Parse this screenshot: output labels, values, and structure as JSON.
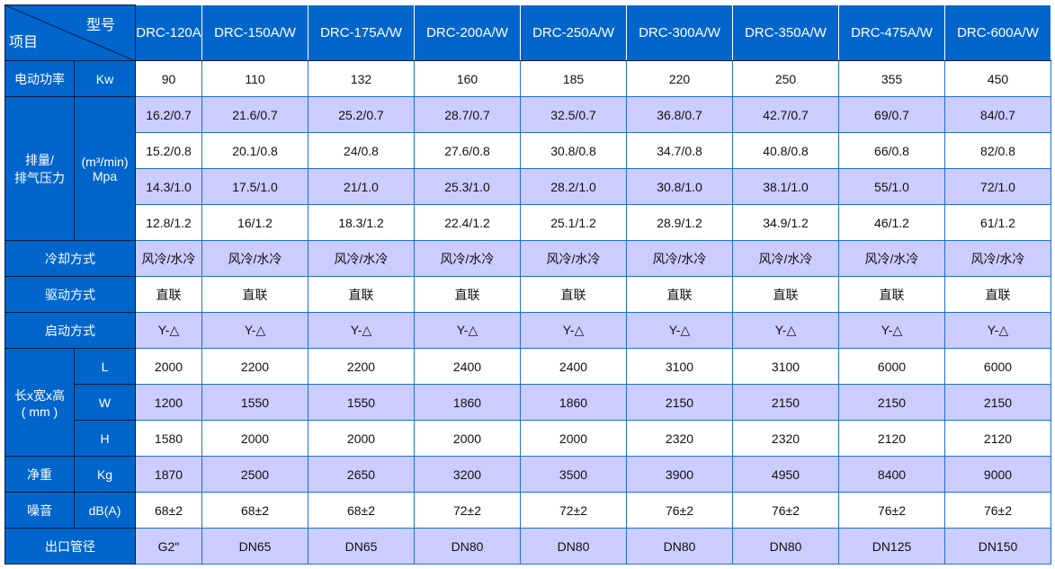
{
  "header": {
    "model_label": "型号",
    "item_label": "项目",
    "models": [
      "DRC-120A",
      "DRC-150A/W",
      "DRC-175A/W",
      "DRC-200A/W",
      "DRC-250A/W",
      "DRC-300A/W",
      "DRC-350A/W",
      "DRC-475A/W",
      "DRC-600A/W"
    ]
  },
  "colors": {
    "header_blue": "#0066cc",
    "alt_row": "#ccccff",
    "border": "#1f6fd6"
  },
  "rows": {
    "power": {
      "label": "电动功率",
      "unit": "Kw",
      "values": [
        "90",
        "110",
        "132",
        "160",
        "185",
        "220",
        "250",
        "355",
        "450"
      ]
    },
    "flow": {
      "label": "排量/\n排气压力",
      "unit": "(m³/min)\nMpa",
      "rows": [
        [
          "16.2/0.7",
          "21.6/0.7",
          "25.2/0.7",
          "28.7/0.7",
          "32.5/0.7",
          "36.8/0.7",
          "42.7/0.7",
          "69/0.7",
          "84/0.7"
        ],
        [
          "15.2/0.8",
          "20.1/0.8",
          "24/0.8",
          "27.6/0.8",
          "30.8/0.8",
          "34.7/0.8",
          "40.8/0.8",
          "66/0.8",
          "82/0.8"
        ],
        [
          "14.3/1.0",
          "17.5/1.0",
          "21/1.0",
          "25.3/1.0",
          "28.2/1.0",
          "30.8/1.0",
          "38.1/1.0",
          "55/1.0",
          "72/1.0"
        ],
        [
          "12.8/1.2",
          "16/1.2",
          "18.3/1.2",
          "22.4/1.2",
          "25.1/1.2",
          "28.9/1.2",
          "34.9/1.2",
          "46/1.2",
          "61/1.2"
        ]
      ]
    },
    "cooling": {
      "label": "冷却方式",
      "values": [
        "风冷/水冷",
        "风冷/水冷",
        "风冷/水冷",
        "风冷/水冷",
        "风冷/水冷",
        "风冷/水冷",
        "风冷/水冷",
        "风冷/水冷",
        "风冷/水冷"
      ]
    },
    "drive": {
      "label": "驱动方式",
      "values": [
        "直联",
        "直联",
        "直联",
        "直联",
        "直联",
        "直联",
        "直联",
        "直联",
        "直联"
      ]
    },
    "start": {
      "label": "启动方式",
      "values": [
        "Y-△",
        "Y-△",
        "Y-△",
        "Y-△",
        "Y-△",
        "Y-△",
        "Y-△",
        "Y-△",
        "Y-△"
      ]
    },
    "dims": {
      "label": "长x宽x高\n( mm )",
      "rows": [
        {
          "unit": "L",
          "values": [
            "2000",
            "2200",
            "2200",
            "2400",
            "2400",
            "3100",
            "3100",
            "6000",
            "6000"
          ]
        },
        {
          "unit": "W",
          "values": [
            "1200",
            "1550",
            "1550",
            "1860",
            "1860",
            "2150",
            "2150",
            "2150",
            "2150"
          ]
        },
        {
          "unit": "H",
          "values": [
            "1580",
            "2000",
            "2000",
            "2000",
            "2000",
            "2320",
            "2320",
            "2120",
            "2120"
          ]
        }
      ]
    },
    "weight": {
      "label": "净重",
      "unit": "Kg",
      "values": [
        "1870",
        "2500",
        "2650",
        "3200",
        "3500",
        "3900",
        "4950",
        "8400",
        "9000"
      ]
    },
    "noise": {
      "label": "噪音",
      "unit": "dB(A)",
      "values": [
        "68±2",
        "68±2",
        "68±2",
        "72±2",
        "72±2",
        "76±2",
        "76±2",
        "76±2",
        "76±2"
      ]
    },
    "outlet": {
      "label": "出口管径",
      "values": [
        "G2\"",
        "DN65",
        "DN65",
        "DN80",
        "DN80",
        "DN80",
        "DN80",
        "DN125",
        "DN150"
      ]
    }
  }
}
